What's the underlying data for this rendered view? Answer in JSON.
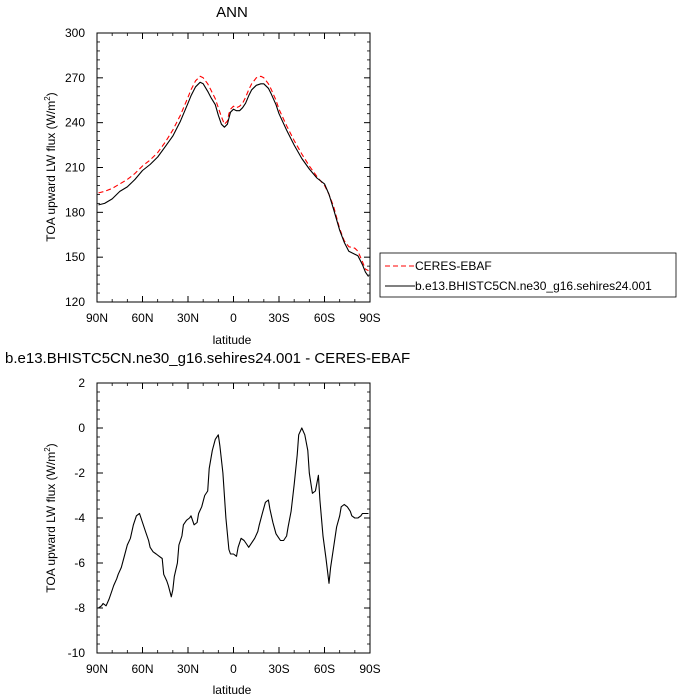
{
  "chart_data": [
    {
      "type": "line",
      "title": "ANN",
      "xlabel": "latitude",
      "ylabel_main": "TOA upward LW flux (W/m",
      "ylabel_sup": "2",
      "ylabel_close": ")",
      "xlim": [
        90,
        -90
      ],
      "ylim": [
        120,
        300
      ],
      "x_ticks": [
        90,
        60,
        30,
        0,
        -30,
        -60,
        -90
      ],
      "x_tick_labels": [
        "90N",
        "60N",
        "30N",
        "0",
        "30S",
        "60S",
        "90S"
      ],
      "y_ticks": [
        120,
        150,
        180,
        210,
        240,
        270,
        300
      ],
      "y_tick_labels": [
        "120",
        "150",
        "180",
        "210",
        "240",
        "270",
        "300"
      ],
      "legend_position": "outside-right",
      "series": [
        {
          "name": "CERES-EBAF",
          "color": "#ff0000",
          "dash": true,
          "x": [
            89,
            85,
            80,
            75,
            70,
            65,
            60,
            55,
            50,
            45,
            40,
            35,
            30,
            28,
            25,
            22,
            20,
            17,
            15,
            12,
            10,
            8,
            6,
            4,
            3,
            2,
            0,
            -2,
            -4,
            -6,
            -8,
            -10,
            -12,
            -15,
            -18,
            -20,
            -23,
            -25,
            -28,
            -30,
            -35,
            -40,
            -45,
            -50,
            -55,
            -60,
            -63,
            -66,
            -70,
            -73,
            -76,
            -80,
            -82,
            -85,
            -87,
            -89
          ],
          "y": [
            193,
            194,
            196,
            199,
            202,
            206,
            211,
            215,
            220,
            227,
            235,
            245,
            257,
            262,
            268,
            271,
            270,
            266,
            262,
            256,
            250,
            244,
            239,
            241,
            246,
            249,
            251,
            250,
            251,
            253,
            257,
            262,
            266,
            270,
            271,
            270,
            266,
            262,
            255,
            249,
            238,
            228,
            219,
            211,
            204,
            198,
            192,
            184,
            169,
            161,
            157,
            156,
            154,
            147,
            142,
            141
          ]
        },
        {
          "name": "b.e13.BHISTC5CN.ne30_g16.sehires24.001",
          "color": "#000000",
          "dash": false,
          "x": [
            89,
            85,
            80,
            75,
            70,
            65,
            60,
            55,
            50,
            45,
            40,
            35,
            30,
            28,
            25,
            22,
            20,
            17,
            15,
            12,
            10,
            8,
            6,
            4,
            3,
            2,
            0,
            -2,
            -4,
            -6,
            -8,
            -10,
            -12,
            -15,
            -18,
            -20,
            -23,
            -25,
            -28,
            -30,
            -35,
            -40,
            -45,
            -50,
            -55,
            -60,
            -63,
            -66,
            -70,
            -73,
            -76,
            -80,
            -82,
            -85,
            -87,
            -89
          ],
          "y": [
            185,
            186,
            189,
            194,
            197,
            202,
            208,
            212,
            217,
            224,
            231,
            241,
            253,
            258,
            264,
            267,
            266,
            261,
            257,
            252,
            245,
            239,
            237,
            239,
            243,
            247,
            249,
            248,
            248,
            250,
            253,
            258,
            262,
            265,
            266,
            266,
            263,
            259,
            252,
            246,
            235,
            225,
            216,
            209,
            203,
            199,
            192,
            182,
            168,
            160,
            154,
            152,
            151,
            145,
            140,
            137
          ]
        }
      ]
    },
    {
      "type": "line",
      "title": "b.e13.BHISTC5CN.ne30_g16.sehires24.001 - CERES-EBAF",
      "xlabel": "latitude",
      "ylabel_main": "TOA upward LW flux (W/m",
      "ylabel_sup": "2",
      "ylabel_close": ")",
      "xlim": [
        90,
        -90
      ],
      "ylim": [
        -10,
        2
      ],
      "x_ticks": [
        90,
        60,
        30,
        0,
        -30,
        -60,
        -90
      ],
      "x_tick_labels": [
        "90N",
        "60N",
        "30N",
        "0",
        "30S",
        "60S",
        "90S"
      ],
      "y_ticks": [
        -10,
        -8,
        -6,
        -4,
        -2,
        0,
        2
      ],
      "y_tick_labels": [
        "-10",
        "-8",
        "-6",
        "-4",
        "-2",
        "0",
        "2"
      ],
      "series": [
        {
          "color": "#000000",
          "dash": false,
          "x": [
            89,
            87,
            86,
            84,
            82,
            80,
            79,
            77,
            76,
            74,
            72,
            70,
            68,
            66,
            64,
            62,
            60,
            58,
            56,
            55,
            53,
            51,
            49,
            47,
            46,
            44,
            43,
            41,
            40,
            39,
            37,
            36,
            34,
            33,
            31,
            29,
            28,
            26,
            24,
            23,
            21,
            19,
            17,
            16,
            14,
            12,
            10,
            9,
            7,
            5,
            3,
            2,
            0,
            -2,
            -3,
            -5,
            -7,
            -9,
            -10,
            -12,
            -14,
            -16,
            -17,
            -19,
            -21,
            -23,
            -24,
            -26,
            -28,
            -30,
            -31,
            -33,
            -35,
            -36,
            -38,
            -40,
            -42,
            -43,
            -45,
            -47,
            -49,
            -50,
            -52,
            -54,
            -56,
            -57,
            -59,
            -61,
            -63,
            -64,
            -66,
            -68,
            -70,
            -71,
            -73,
            -75,
            -77,
            -78,
            -80,
            -82,
            -84,
            -85,
            -87,
            -89
          ],
          "y": [
            -8.0,
            -7.9,
            -7.8,
            -7.9,
            -7.6,
            -7.2,
            -7.0,
            -6.7,
            -6.5,
            -6.2,
            -5.7,
            -5.2,
            -4.9,
            -4.3,
            -3.9,
            -3.8,
            -4.2,
            -4.6,
            -5.0,
            -5.3,
            -5.5,
            -5.6,
            -5.7,
            -5.8,
            -6.5,
            -6.8,
            -7.0,
            -7.5,
            -7.2,
            -6.6,
            -6.0,
            -5.2,
            -4.8,
            -4.3,
            -4.1,
            -4.0,
            -3.9,
            -4.3,
            -4.2,
            -3.8,
            -3.5,
            -3.0,
            -2.8,
            -1.8,
            -1.0,
            -0.5,
            -0.3,
            -0.8,
            -2.0,
            -4.0,
            -5.4,
            -5.6,
            -5.6,
            -5.7,
            -5.3,
            -4.9,
            -5.0,
            -5.2,
            -5.3,
            -5.1,
            -4.9,
            -4.6,
            -4.3,
            -3.8,
            -3.3,
            -3.2,
            -3.6,
            -4.2,
            -4.7,
            -4.9,
            -5.0,
            -5.0,
            -4.8,
            -4.4,
            -3.7,
            -2.5,
            -1.2,
            -0.3,
            0.0,
            -0.3,
            -1.0,
            -2.0,
            -2.9,
            -2.8,
            -2.1,
            -3.2,
            -4.8,
            -5.8,
            -6.9,
            -6.2,
            -5.3,
            -4.4,
            -3.9,
            -3.5,
            -3.4,
            -3.5,
            -3.7,
            -3.9,
            -4.0,
            -4.0,
            -3.9,
            -3.8,
            -3.8,
            -3.8
          ]
        }
      ]
    }
  ]
}
